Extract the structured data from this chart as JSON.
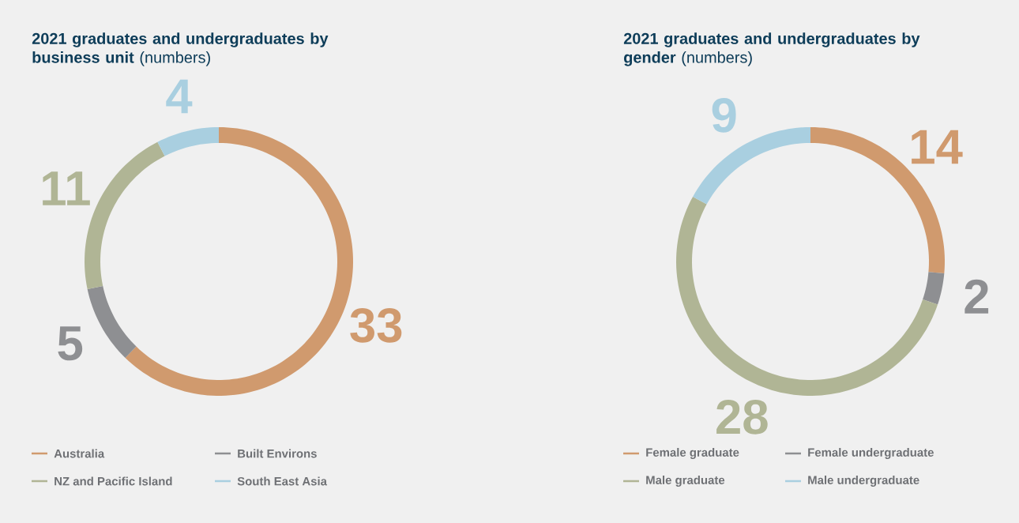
{
  "chart_data": [
    {
      "type": "donut",
      "title": "**2021 graduates and undergraduates by business unit** (numbers)",
      "categories": [
        "Australia",
        "Built Environs",
        "NZ and Pacific Island",
        "South East Asia"
      ],
      "values": [
        33,
        5,
        11,
        4
      ],
      "colors": [
        "#d09a6e",
        "#8e8f92",
        "#b0b595",
        "#a9cfe0"
      ],
      "data_labels": true,
      "legend": "bottom"
    },
    {
      "type": "donut",
      "title": "**2021 graduates and undergraduates by gender** (numbers)",
      "categories": [
        "Female graduate",
        "Female undergraduate",
        "Male graduate",
        "Male undergraduate"
      ],
      "values": [
        14,
        2,
        28,
        9
      ],
      "colors": [
        "#d09a6e",
        "#8e8f92",
        "#b0b595",
        "#a9cfe0"
      ],
      "data_labels": true,
      "legend": "bottom"
    }
  ]
}
